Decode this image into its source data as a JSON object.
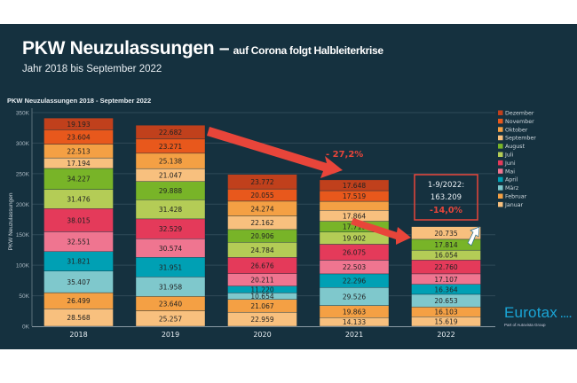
{
  "slide": {
    "title_main": "PKW Neuzulassungen –",
    "title_sub": "auf Corona folgt Halbleiterkrise",
    "subtitle": "Jahr 2018 bis September 2022"
  },
  "annotations": {
    "decline_label": "- 27,2%",
    "box_line1": "1-9/2022:",
    "box_line2": "163.209",
    "box_line3": "-14,0%"
  },
  "logo": {
    "name": "Eurotax",
    "tagline": "Part of Autovista Group"
  },
  "chart_data": {
    "type": "bar",
    "stacked": true,
    "title": "PKW Neuzulassungen 2018 - September 2022",
    "ylabel": "PKW Neuzulassungen",
    "xlabel": "",
    "ylim": [
      0,
      350000
    ],
    "yticks": [
      0,
      50000,
      100000,
      150000,
      200000,
      250000,
      300000,
      350000
    ],
    "ytick_labels": [
      "0K",
      "50K",
      "100K",
      "150K",
      "200K",
      "250K",
      "300K",
      "350K"
    ],
    "grid": true,
    "legend_position": "right",
    "categories": [
      "2018",
      "2019",
      "2020",
      "2021",
      "2022"
    ],
    "series": [
      {
        "name": "Januar",
        "color": "#f8c07e",
        "values": [
          28568,
          25257,
          22959,
          14133,
          15619
        ],
        "labels": [
          "28.568",
          "25.257",
          "22.959",
          "14.133",
          "15.619"
        ]
      },
      {
        "name": "Februar",
        "color": "#f4a044",
        "values": [
          26499,
          23640,
          21067,
          19863,
          16103
        ],
        "labels": [
          "26.499",
          "23.640",
          "21.067",
          "19.863",
          "16.103"
        ]
      },
      {
        "name": "März",
        "color": "#7fc8cc",
        "values": [
          35407,
          31958,
          10654,
          29526,
          20653
        ],
        "labels": [
          "35.407",
          "31.958",
          "10.654",
          "29.526",
          "20.653"
        ]
      },
      {
        "name": "April",
        "color": "#00a0b4",
        "values": [
          31821,
          31951,
          11220,
          22296,
          16364
        ],
        "labels": [
          "31.821",
          "31.951",
          "11.220",
          "22.296",
          "16.364"
        ]
      },
      {
        "name": "Mai",
        "color": "#ef7590",
        "values": [
          32551,
          30574,
          20211,
          22503,
          17107
        ],
        "labels": [
          "32.551",
          "30.574",
          "20.211",
          "22.503",
          "17.107"
        ]
      },
      {
        "name": "Juni",
        "color": "#e43a5a",
        "values": [
          38015,
          32529,
          26676,
          26075,
          22760
        ],
        "labels": [
          "38.015",
          "32.529",
          "26.676",
          "26.075",
          "22.760"
        ]
      },
      {
        "name": "Juli",
        "color": "#b4cc56",
        "values": [
          31476,
          31428,
          24784,
          19902,
          16054
        ],
        "labels": [
          "31.476",
          "31.428",
          "24.784",
          "19.902",
          "16.054"
        ]
      },
      {
        "name": "August",
        "color": "#78b428",
        "values": [
          34227,
          29888,
          20906,
          17719,
          17814
        ],
        "labels": [
          "34.227",
          "29.888",
          "20.906",
          "17.719",
          "17.814"
        ]
      },
      {
        "name": "September",
        "color": "#f8c07e",
        "values": [
          17194,
          21047,
          22162,
          17864,
          20735
        ],
        "labels": [
          "17.194",
          "21.047",
          "22.162",
          "17.864",
          "20.735"
        ]
      },
      {
        "name": "Oktober",
        "color": "#f4a044",
        "values": [
          22513,
          25138,
          24274,
          14755,
          null
        ],
        "labels": [
          "22.513",
          "25.138",
          "24.274",
          "",
          ""
        ]
      },
      {
        "name": "November",
        "color": "#e8581c",
        "values": [
          23604,
          23271,
          20055,
          17519,
          null
        ],
        "labels": [
          "23.604",
          "23.271",
          "20.055",
          "17.519",
          ""
        ]
      },
      {
        "name": "Dezember",
        "color": "#c0401c",
        "values": [
          19193,
          22682,
          23772,
          17648,
          null
        ],
        "labels": [
          "19.193",
          "22.682",
          "23.772",
          "17.648",
          ""
        ]
      }
    ],
    "colors": {
      "accent": "#e8453a",
      "background": "#15313f"
    }
  }
}
